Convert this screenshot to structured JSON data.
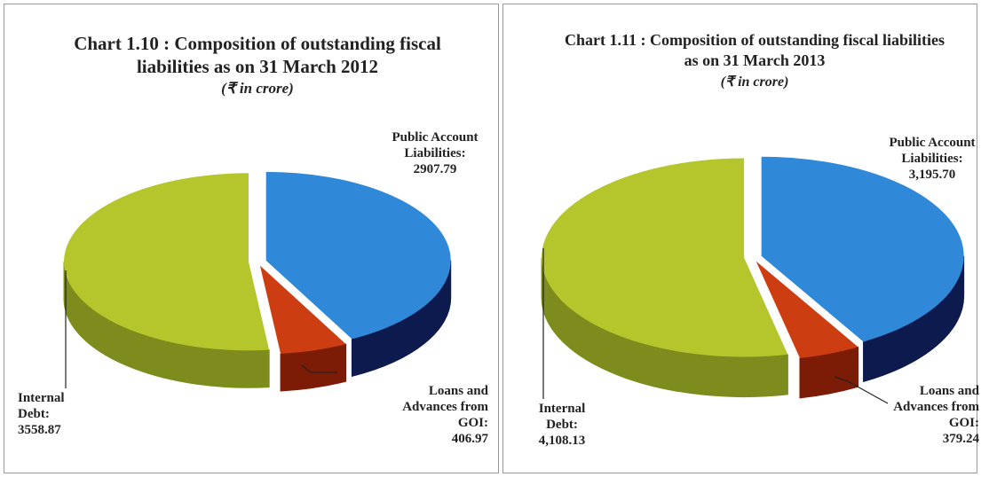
{
  "chart_data": [
    {
      "type": "pie",
      "title": "Chart 1.10 : Composition of outstanding fiscal liabilities as on 31 March 2012",
      "subtitle": "(₹ in crore)",
      "categories": [
        "Public Account Liabilities:",
        "Loans and Advances from GOI:",
        "Internal Debt:"
      ],
      "values": [
        2907.79,
        406.97,
        3558.87
      ],
      "colors": [
        "#2f88d8",
        "#cc3e12",
        "#b4c62c"
      ],
      "side_colors": [
        "#0d1a4e",
        "#7c1c06",
        "#7d8c1c"
      ]
    },
    {
      "type": "pie",
      "title": "Chart 1.11 : Composition of outstanding fiscal liabilities as on 31 March 2013",
      "subtitle": "(₹ in crore)",
      "categories": [
        "Public Account Liabilities:",
        "Loans and Advances from GOI:",
        "Internal Debt:"
      ],
      "values": [
        3195.7,
        379.24,
        4108.13
      ],
      "value_labels": [
        "3,195.70",
        "379.24",
        "4,108.13"
      ],
      "colors": [
        "#2f88d8",
        "#cc3e12",
        "#b4c62c"
      ],
      "side_colors": [
        "#0d1a4e",
        "#7c1c06",
        "#7d8c1c"
      ]
    }
  ]
}
